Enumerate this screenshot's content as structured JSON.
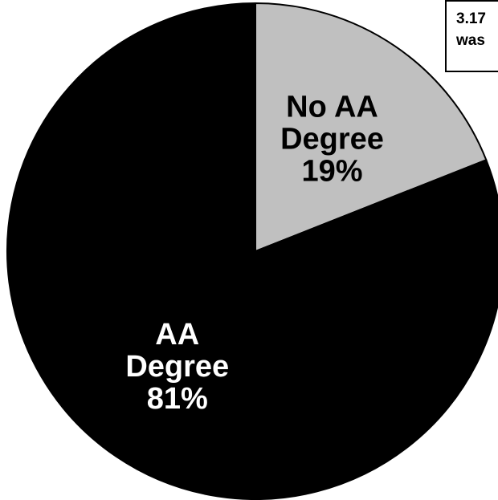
{
  "chart_data": {
    "type": "pie",
    "slices": [
      {
        "name": "No AA Degree",
        "label_lines": [
          "No AA",
          "Degree"
        ],
        "value": 19,
        "value_label": "19%",
        "color": "#c0c0c0",
        "text_color": "#000000"
      },
      {
        "name": "AA Degree",
        "label_lines": [
          "AA",
          "Degree"
        ],
        "value": 81,
        "value_label": "81%",
        "color": "#000000",
        "text_color": "#ffffff"
      }
    ],
    "start_angle_deg": 0,
    "direction": "clockwise",
    "legend": "none"
  },
  "note": {
    "lines": [
      "3.17",
      "was"
    ]
  }
}
